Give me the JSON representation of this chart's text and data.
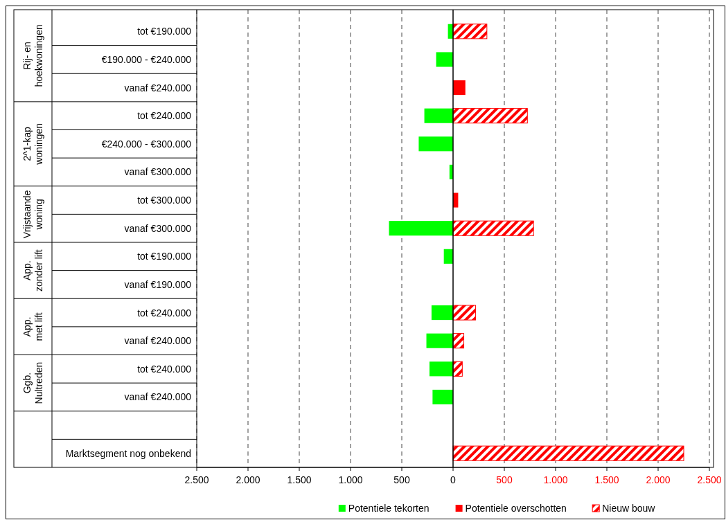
{
  "chart_data": {
    "type": "bar",
    "orientation": "horizontal",
    "categories": [
      "tot €190.000",
      "€190.000 - €240.000",
      "vanaf €240.000",
      "tot €240.000",
      "€240.000 - €300.000",
      "vanaf €300.000",
      "tot €300.000",
      "vanaf €300.000",
      "tot €190.000",
      "vanaf €190.000",
      "tot €240.000",
      "vanaf €240.000",
      "tot €240.000",
      "vanaf €240.000",
      null,
      "Marktsegment nog onbekend"
    ],
    "series": [
      {
        "name": "Potentiele tekorten",
        "color": "#00ff00",
        "values": [
          -50,
          -165,
          null,
          -280,
          -335,
          -35,
          null,
          -625,
          -90,
          null,
          -210,
          -260,
          -230,
          -200,
          null,
          null
        ]
      },
      {
        "name": "Potentiele overschotten",
        "color": "#ff0000",
        "values": [
          null,
          null,
          120,
          null,
          null,
          null,
          50,
          null,
          null,
          null,
          null,
          null,
          null,
          null,
          null,
          null
        ]
      },
      {
        "name": "Nieuw bouw",
        "color": "#ff0000",
        "values": [
          330,
          null,
          null,
          725,
          null,
          null,
          null,
          785,
          null,
          null,
          220,
          105,
          90,
          null,
          null,
          2250
        ]
      }
    ],
    "annotations": [
      "Rij- en hoekwoningen",
      "2^1-kap woningen",
      "Vrijstaande woning",
      "App. zonder lift",
      "App. met lift",
      "Ggb. Nultreden"
    ],
    "xlim": [
      -2500,
      2500
    ],
    "xticks": [
      {
        "value": -2500,
        "label": "2.500"
      },
      {
        "value": -2000,
        "label": "2.000"
      },
      {
        "value": -1500,
        "label": "1.500"
      },
      {
        "value": -1000,
        "label": "1.000"
      },
      {
        "value": -500,
        "label": "500"
      },
      0,
      {
        "value": 500,
        "label": "500"
      },
      {
        "value": 1000,
        "label": "1.000"
      },
      {
        "value": 1500,
        "label": "1.500"
      },
      {
        "value": 2000,
        "label": "2.000"
      },
      {
        "value": 2500,
        "label": "2.500"
      }
    ],
    "grid": "x",
    "legend": "bottom"
  }
}
